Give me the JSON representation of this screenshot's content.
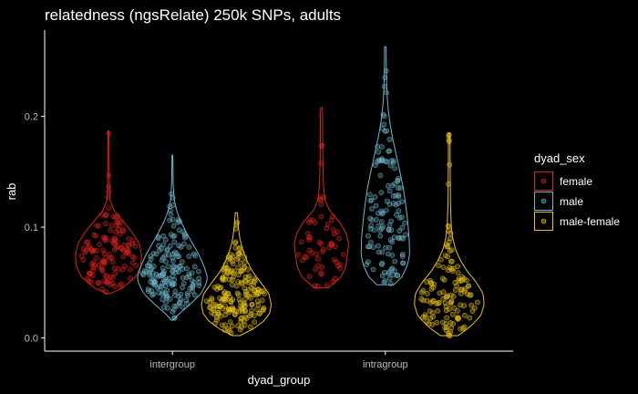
{
  "chart_data": {
    "type": "violin",
    "title": "relatedness (ngsRelate) 250k SNPs, adults",
    "xlabel": "dyad_group",
    "ylabel": "rab",
    "categories": [
      "intergroup",
      "intragroup"
    ],
    "ylim": [
      -0.012,
      0.278
    ],
    "yticks": [
      "0.0",
      "0.1",
      "0.2"
    ],
    "yticks_values": [
      0.0,
      0.1,
      0.2
    ],
    "legend": {
      "title": "dyad_sex",
      "position": "right"
    },
    "colors": {
      "female": "#d7261e",
      "male": "#6fb7cb",
      "male-female": "#e6c21a"
    },
    "series": [
      {
        "name": "female",
        "violins": [
          {
            "group": "intergroup",
            "min": 0.04,
            "max": 0.187,
            "max_halfwidth": 0.155,
            "n_points": 130,
            "profile": [
              [
                0.04,
                0.05
              ],
              [
                0.045,
                0.42
              ],
              [
                0.055,
                0.82
              ],
              [
                0.065,
                0.98
              ],
              [
                0.075,
                1.0
              ],
              [
                0.085,
                0.93
              ],
              [
                0.095,
                0.72
              ],
              [
                0.105,
                0.45
              ],
              [
                0.115,
                0.17
              ],
              [
                0.125,
                0.04
              ],
              [
                0.14,
                0.025
              ],
              [
                0.16,
                0.02
              ],
              [
                0.175,
                0.018
              ],
              [
                0.187,
                0.015
              ]
            ]
          },
          {
            "group": "intragroup",
            "min": 0.045,
            "max": 0.208,
            "max_halfwidth": 0.128,
            "n_points": 60,
            "profile": [
              [
                0.045,
                0.25
              ],
              [
                0.055,
                0.72
              ],
              [
                0.065,
                0.9
              ],
              [
                0.075,
                0.95
              ],
              [
                0.085,
                1.0
              ],
              [
                0.095,
                0.9
              ],
              [
                0.105,
                0.65
              ],
              [
                0.115,
                0.3
              ],
              [
                0.125,
                0.12
              ],
              [
                0.14,
                0.07
              ],
              [
                0.16,
                0.05
              ],
              [
                0.18,
                0.04
              ],
              [
                0.2,
                0.04
              ],
              [
                0.208,
                0.03
              ]
            ]
          }
        ]
      },
      {
        "name": "male",
        "violins": [
          {
            "group": "intergroup",
            "min": 0.016,
            "max": 0.165,
            "max_halfwidth": 0.164,
            "n_points": 170,
            "profile": [
              [
                0.016,
                0.03
              ],
              [
                0.022,
                0.2
              ],
              [
                0.03,
                0.5
              ],
              [
                0.04,
                0.82
              ],
              [
                0.05,
                0.98
              ],
              [
                0.055,
                1.0
              ],
              [
                0.065,
                0.9
              ],
              [
                0.075,
                0.76
              ],
              [
                0.085,
                0.58
              ],
              [
                0.095,
                0.4
              ],
              [
                0.105,
                0.24
              ],
              [
                0.115,
                0.12
              ],
              [
                0.125,
                0.05
              ],
              [
                0.14,
                0.02
              ],
              [
                0.165,
                0.012
              ]
            ]
          },
          {
            "group": "intragroup",
            "min": 0.048,
            "max": 0.263,
            "max_halfwidth": 0.114,
            "n_points": 130,
            "profile": [
              [
                0.048,
                0.35
              ],
              [
                0.055,
                0.68
              ],
              [
                0.065,
                0.9
              ],
              [
                0.075,
                1.0
              ],
              [
                0.09,
                0.98
              ],
              [
                0.105,
                0.92
              ],
              [
                0.12,
                0.84
              ],
              [
                0.135,
                0.74
              ],
              [
                0.15,
                0.6
              ],
              [
                0.165,
                0.45
              ],
              [
                0.18,
                0.3
              ],
              [
                0.195,
                0.18
              ],
              [
                0.21,
                0.1
              ],
              [
                0.225,
                0.06
              ],
              [
                0.24,
                0.04
              ],
              [
                0.263,
                0.03
              ]
            ]
          }
        ]
      },
      {
        "name": "male-female",
        "violins": [
          {
            "group": "intergroup",
            "min": 0.002,
            "max": 0.113,
            "max_halfwidth": 0.164,
            "n_points": 200,
            "profile": [
              [
                0.002,
                0.1
              ],
              [
                0.008,
                0.48
              ],
              [
                0.015,
                0.78
              ],
              [
                0.022,
                0.95
              ],
              [
                0.03,
                1.0
              ],
              [
                0.04,
                0.93
              ],
              [
                0.05,
                0.7
              ],
              [
                0.06,
                0.46
              ],
              [
                0.07,
                0.3
              ],
              [
                0.08,
                0.18
              ],
              [
                0.09,
                0.1
              ],
              [
                0.1,
                0.06
              ],
              [
                0.113,
                0.03
              ]
            ]
          },
          {
            "group": "intragroup",
            "min": 0.002,
            "max": 0.185,
            "max_halfwidth": 0.164,
            "n_points": 130,
            "profile": [
              [
                0.002,
                0.25
              ],
              [
                0.01,
                0.6
              ],
              [
                0.02,
                0.9
              ],
              [
                0.03,
                1.0
              ],
              [
                0.04,
                0.97
              ],
              [
                0.05,
                0.78
              ],
              [
                0.06,
                0.52
              ],
              [
                0.07,
                0.32
              ],
              [
                0.08,
                0.18
              ],
              [
                0.09,
                0.1
              ],
              [
                0.1,
                0.06
              ],
              [
                0.12,
                0.035
              ],
              [
                0.14,
                0.03
              ],
              [
                0.16,
                0.025
              ],
              [
                0.185,
                0.02
              ]
            ]
          }
        ]
      }
    ]
  }
}
